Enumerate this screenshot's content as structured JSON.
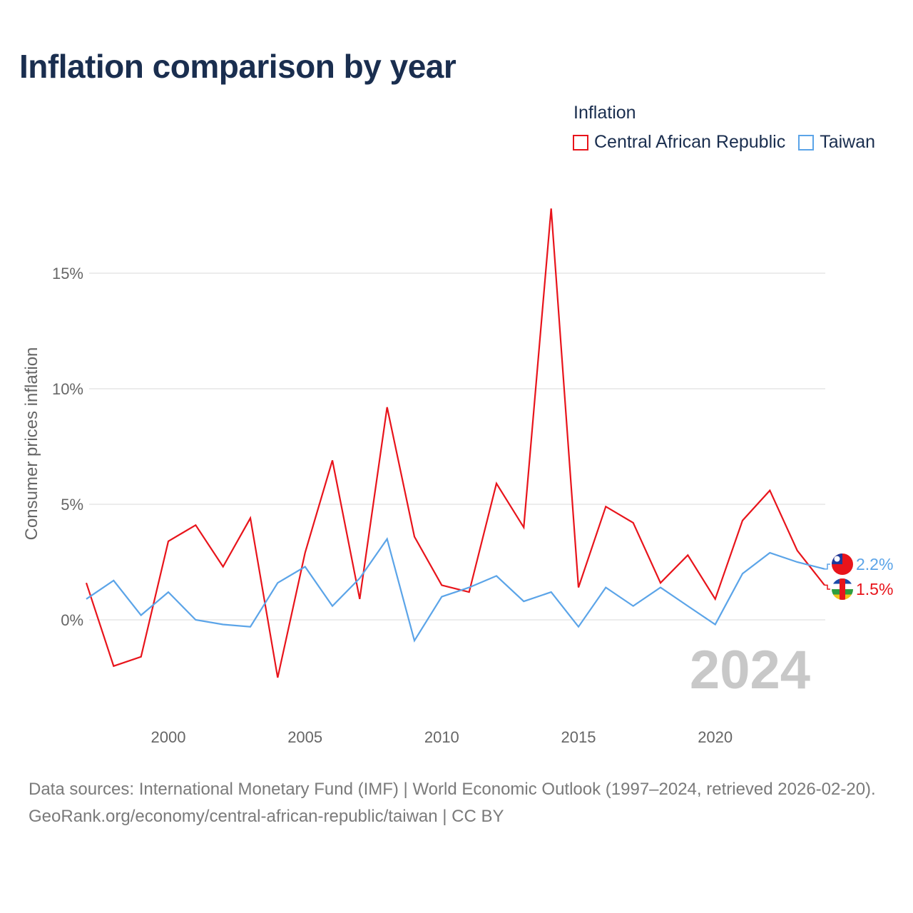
{
  "title": "Inflation comparison by year",
  "legend": {
    "title": "Inflation",
    "items": [
      {
        "label": "Central African Republic",
        "color": "#e8141b"
      },
      {
        "label": "Taiwan",
        "color": "#5ba4e8"
      }
    ]
  },
  "footer": {
    "line1": "Data sources: International Monetary Fund (IMF) | World Economic Outlook (1997–2024, retrieved 2026-02-20).",
    "line2": "GeoRank.org/economy/central-african-republic/taiwan | CC BY"
  },
  "chart_data": {
    "type": "line",
    "title": "Inflation comparison by year",
    "ylabel": "Consumer prices inflation",
    "xlabel": "",
    "x": [
      1997,
      1998,
      1999,
      2000,
      2001,
      2002,
      2003,
      2004,
      2005,
      2006,
      2007,
      2008,
      2009,
      2010,
      2011,
      2012,
      2013,
      2014,
      2015,
      2016,
      2017,
      2018,
      2019,
      2020,
      2021,
      2022,
      2023,
      2024
    ],
    "xlim": [
      1997,
      2024
    ],
    "ylim": [
      -4,
      18
    ],
    "x_ticks": [
      2000,
      2005,
      2010,
      2015,
      2020
    ],
    "x_tick_labels": [
      "2000",
      "2005",
      "2010",
      "2015",
      "2020"
    ],
    "y_ticks": [
      0,
      5,
      10,
      15
    ],
    "y_tick_labels": [
      "0%",
      "5%",
      "10%",
      "15%"
    ],
    "grid": true,
    "watermark_year": "2024",
    "series": [
      {
        "name": "Central African Republic",
        "color": "#e8141b",
        "end_label": "1.5%",
        "values": [
          1.6,
          -2.0,
          -1.6,
          3.4,
          4.1,
          2.3,
          4.4,
          -2.5,
          2.9,
          6.9,
          0.9,
          9.2,
          3.6,
          1.5,
          1.2,
          5.9,
          4.0,
          17.8,
          1.4,
          4.9,
          4.2,
          1.6,
          2.8,
          0.9,
          4.3,
          5.6,
          3.0,
          1.5
        ]
      },
      {
        "name": "Taiwan",
        "color": "#5ba4e8",
        "end_label": "2.2%",
        "values": [
          0.9,
          1.7,
          0.2,
          1.2,
          0.0,
          -0.2,
          -0.3,
          1.6,
          2.3,
          0.6,
          1.8,
          3.5,
          -0.9,
          1.0,
          1.4,
          1.9,
          0.8,
          1.2,
          -0.3,
          1.4,
          0.6,
          1.4,
          0.6,
          -0.2,
          2.0,
          2.9,
          2.5,
          2.2
        ]
      }
    ]
  }
}
